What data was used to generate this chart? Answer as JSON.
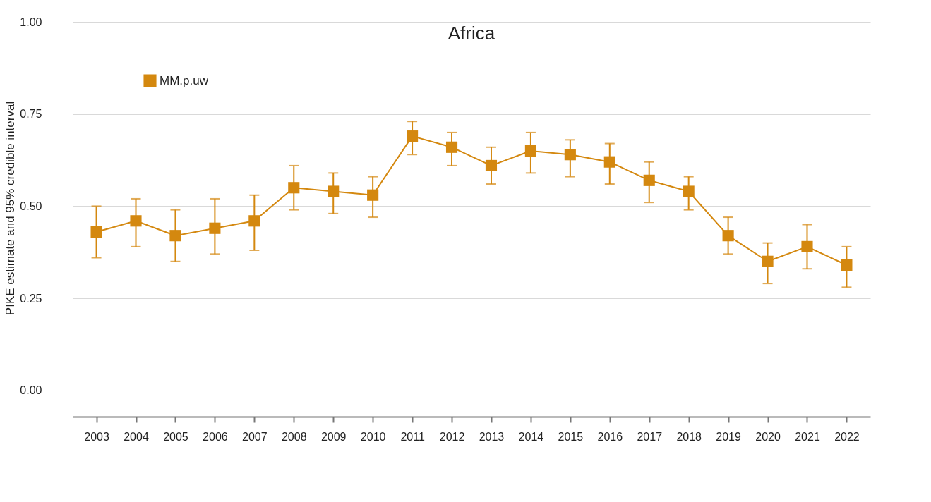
{
  "chart_data": {
    "type": "line",
    "title": "Africa",
    "ylabel": "PIKE estimate and 95% credible interval",
    "categories": [
      "2003",
      "2004",
      "2005",
      "2006",
      "2007",
      "2008",
      "2009",
      "2010",
      "2011",
      "2012",
      "2013",
      "2014",
      "2015",
      "2016",
      "2017",
      "2018",
      "2019",
      "2020",
      "2021",
      "2022"
    ],
    "series": [
      {
        "name": "MM.p.uw",
        "color": "#d4880f",
        "values": [
          0.43,
          0.46,
          0.42,
          0.44,
          0.46,
          0.55,
          0.54,
          0.53,
          0.69,
          0.66,
          0.61,
          0.65,
          0.64,
          0.62,
          0.57,
          0.54,
          0.42,
          0.35,
          0.39,
          0.34
        ],
        "errors": [
          [
            0.36,
            0.5
          ],
          [
            0.39,
            0.52
          ],
          [
            0.35,
            0.49
          ],
          [
            0.37,
            0.52
          ],
          [
            0.38,
            0.53
          ],
          [
            0.49,
            0.61
          ],
          [
            0.48,
            0.59
          ],
          [
            0.47,
            0.58
          ],
          [
            0.64,
            0.73
          ],
          [
            0.61,
            0.7
          ],
          [
            0.56,
            0.66
          ],
          [
            0.59,
            0.7
          ],
          [
            0.58,
            0.68
          ],
          [
            0.56,
            0.67
          ],
          [
            0.51,
            0.62
          ],
          [
            0.49,
            0.58
          ],
          [
            0.37,
            0.47
          ],
          [
            0.29,
            0.4
          ],
          [
            0.33,
            0.45
          ],
          [
            0.28,
            0.39
          ]
        ]
      }
    ],
    "ylim": [
      -0.06,
      1.05
    ],
    "yticks": [
      {
        "value": 0,
        "label": "0.00"
      },
      {
        "value": 0.25,
        "label": "0.25"
      },
      {
        "value": 0.5,
        "label": "0.50"
      },
      {
        "value": 0.75,
        "label": "0.75"
      },
      {
        "value": 1,
        "label": "1.00"
      }
    ],
    "grid": "y",
    "legend": "top left",
    "marker": "square",
    "line_style": "solid"
  }
}
